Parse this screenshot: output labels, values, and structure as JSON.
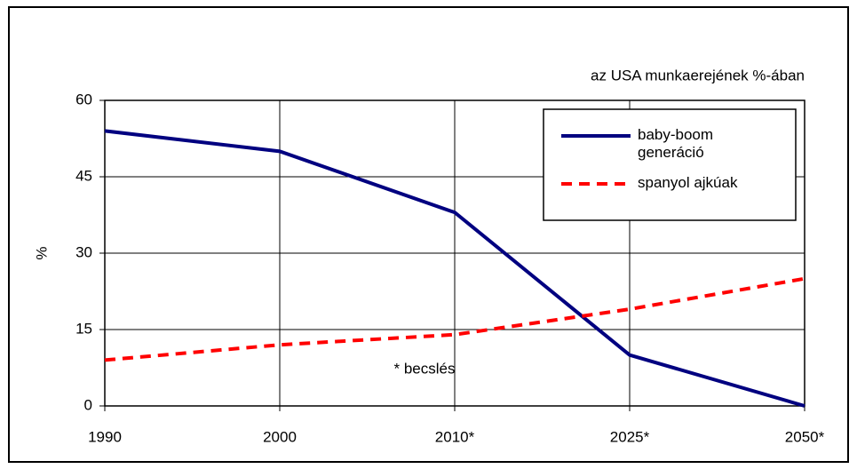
{
  "chart_data": {
    "type": "line",
    "subtitle": "az USA munkaerejének %-ában",
    "y_label": "%",
    "annotation": "* becslés",
    "categories": [
      "1990",
      "2000",
      "2010*",
      "2025*",
      "2050*"
    ],
    "series": [
      {
        "name": "baby-boom generáció",
        "color": "#000080",
        "dashed": false,
        "values": [
          54,
          50,
          38,
          10,
          0
        ]
      },
      {
        "name": "spanyol ajkúak",
        "color": "#ff0000",
        "dashed": true,
        "values": [
          9,
          12,
          14,
          19,
          25
        ]
      }
    ],
    "ylim": [
      0,
      60
    ],
    "yticks": [
      0,
      15,
      30,
      45,
      60
    ],
    "grid": true,
    "legend": "upper right"
  }
}
